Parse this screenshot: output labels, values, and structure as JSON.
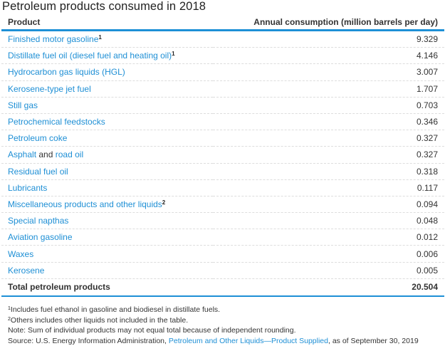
{
  "title": "Petroleum products consumed in 2018",
  "headers": {
    "product": "Product",
    "value": "Annual consumption (million barrels per day)"
  },
  "rows": [
    {
      "product": "Finished motor gasoline",
      "sup": "1",
      "value": "9.329"
    },
    {
      "product": "Distillate fuel oil (diesel fuel and heating oil)",
      "sup": "1",
      "value": "4.146"
    },
    {
      "product": "Hydrocarbon gas liquids (HGL)",
      "value": "3.007"
    },
    {
      "product": "Kerosene-type jet fuel",
      "value": "1.707"
    },
    {
      "product": "Still gas",
      "value": "0.703"
    },
    {
      "product": "Petrochemical feedstocks",
      "value": "0.346"
    },
    {
      "product": "Petroleum coke",
      "value": "0.327"
    },
    {
      "product": "Asphalt",
      "connector": "and",
      "product2": "road oil",
      "value": "0.327"
    },
    {
      "product": "Residual fuel oil",
      "value": "0.318"
    },
    {
      "product": "Lubricants",
      "value": "0.117"
    },
    {
      "product": "Miscellaneous products and other liquids",
      "sup": "2",
      "value": "0.094"
    },
    {
      "product": "Special napthas",
      "value": "0.048"
    },
    {
      "product": "Aviation gasoline",
      "value": "0.012"
    },
    {
      "product": "Waxes",
      "value": "0.006"
    },
    {
      "product": "Kerosene",
      "value": "0.005"
    }
  ],
  "total": {
    "label": "Total petroleum products",
    "value": "20.504"
  },
  "notes": {
    "n1_sup": "1",
    "n1": "Includes fuel ethanol in gasoline and biodiesel in distillate fuels.",
    "n2_sup": "2",
    "n2": "Others includes other liquids not included in the table.",
    "note": "Note: Sum of individual products may not equal total because of independent rounding.",
    "source_prefix": "Source: U.S. Energy Information Administration, ",
    "source_link": "Petroleum and Other Liquids—Product Supplied",
    "source_suffix": ", as of September 30, 2019"
  }
}
